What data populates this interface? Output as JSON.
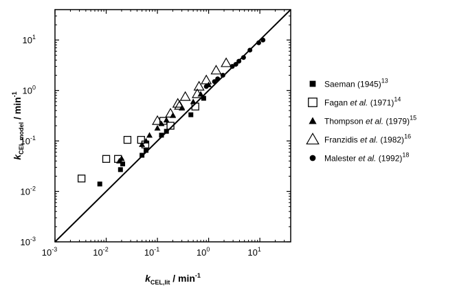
{
  "chart_data": {
    "type": "scatter",
    "x_scale": "log",
    "y_scale": "log",
    "xlim": [
      0.001,
      40
    ],
    "ylim": [
      0.001,
      40
    ],
    "grid": false,
    "legend_position": "right",
    "xlabel": {
      "main": "k",
      "sub": "CEL,lit",
      "unit": " / min",
      "sup": "-1"
    },
    "ylabel": {
      "main": "k",
      "sub": "CEL,model",
      "unit": " / min",
      "sup": "-1"
    },
    "x_ticks": [
      {
        "value": 0.001,
        "base": "10",
        "exp": "-3"
      },
      {
        "value": 0.01,
        "base": "10",
        "exp": "-2"
      },
      {
        "value": 0.1,
        "base": "10",
        "exp": "-1"
      },
      {
        "value": 1,
        "base": "10",
        "exp": "0"
      },
      {
        "value": 10,
        "base": "10",
        "exp": "1"
      }
    ],
    "y_ticks": [
      {
        "value": 0.001,
        "base": "10",
        "exp": "-3"
      },
      {
        "value": 0.01,
        "base": "10",
        "exp": "-2"
      },
      {
        "value": 0.1,
        "base": "10",
        "exp": "-1"
      },
      {
        "value": 1,
        "base": "10",
        "exp": "0"
      },
      {
        "value": 10,
        "base": "10",
        "exp": "1"
      }
    ],
    "reference_line": {
      "type": "parity",
      "from": [
        0.001,
        0.001
      ],
      "to": [
        40,
        40
      ]
    },
    "series": [
      {
        "name": "Saeman (1945)",
        "legend_parts": [
          {
            "t": "Saeman (1945)"
          },
          {
            "t": "13",
            "sup": true
          }
        ],
        "marker": "square-filled",
        "points": [
          [
            0.0075,
            0.014
          ],
          [
            0.019,
            0.027
          ],
          [
            0.021,
            0.035
          ],
          [
            0.05,
            0.052
          ],
          [
            0.06,
            0.065
          ],
          [
            0.12,
            0.13
          ],
          [
            0.15,
            0.155
          ],
          [
            0.45,
            0.33
          ],
          [
            0.8,
            0.7
          ]
        ]
      },
      {
        "name": "Fagan et al. (1971)",
        "legend_parts": [
          {
            "t": "Fagan "
          },
          {
            "t": "et al.",
            "italic": true
          },
          {
            "t": " (1971)"
          },
          {
            "t": "14",
            "sup": true
          }
        ],
        "marker": "square-open",
        "points": [
          [
            0.0033,
            0.018
          ],
          [
            0.01,
            0.044
          ],
          [
            0.017,
            0.044
          ],
          [
            0.026,
            0.105
          ],
          [
            0.048,
            0.105
          ],
          [
            0.058,
            0.085
          ],
          [
            0.13,
            0.25
          ],
          [
            0.18,
            0.2
          ],
          [
            0.55,
            0.48
          ]
        ]
      },
      {
        "name": "Thompson et al. (1979)",
        "legend_parts": [
          {
            "t": "Thompson "
          },
          {
            "t": "et al.",
            "italic": true
          },
          {
            "t": " (1979)"
          },
          {
            "t": "15",
            "sup": true
          }
        ],
        "marker": "triangle-filled",
        "points": [
          [
            0.018,
            0.04
          ],
          [
            0.02,
            0.045
          ],
          [
            0.05,
            0.085
          ],
          [
            0.06,
            0.1
          ],
          [
            0.07,
            0.13
          ],
          [
            0.1,
            0.18
          ],
          [
            0.12,
            0.22
          ],
          [
            0.15,
            0.26
          ],
          [
            0.2,
            0.32
          ],
          [
            0.3,
            0.45
          ],
          [
            0.5,
            0.6
          ],
          [
            0.7,
            0.85
          ],
          [
            1.0,
            1.3
          ]
        ]
      },
      {
        "name": "Franzidis et al. (1982)",
        "legend_parts": [
          {
            "t": "Franzidis "
          },
          {
            "t": "et al.",
            "italic": true
          },
          {
            "t": " (1982)"
          },
          {
            "t": "16",
            "sup": true
          }
        ],
        "marker": "triangle-open",
        "points": [
          [
            0.1,
            0.25
          ],
          [
            0.18,
            0.35
          ],
          [
            0.25,
            0.55
          ],
          [
            0.27,
            0.5
          ],
          [
            0.35,
            0.75
          ],
          [
            0.6,
            0.85
          ],
          [
            0.65,
            1.2
          ],
          [
            0.9,
            1.6
          ],
          [
            1.4,
            2.5
          ],
          [
            2.2,
            3.5
          ]
        ]
      },
      {
        "name": "Malester et al. (1992)",
        "legend_parts": [
          {
            "t": "Malester "
          },
          {
            "t": "et al.",
            "italic": true
          },
          {
            "t": " (1992)"
          },
          {
            "t": "18",
            "sup": true
          }
        ],
        "marker": "circle-filled",
        "points": [
          [
            0.9,
            1.2
          ],
          [
            1.3,
            1.5
          ],
          [
            1.5,
            1.7
          ],
          [
            1.9,
            2.0
          ],
          [
            2.9,
            3.0
          ],
          [
            3.4,
            3.3
          ],
          [
            3.9,
            3.8
          ],
          [
            4.8,
            4.5
          ],
          [
            6.4,
            6.3
          ],
          [
            9.5,
            8.8
          ],
          [
            11.5,
            10.0
          ]
        ]
      }
    ]
  }
}
